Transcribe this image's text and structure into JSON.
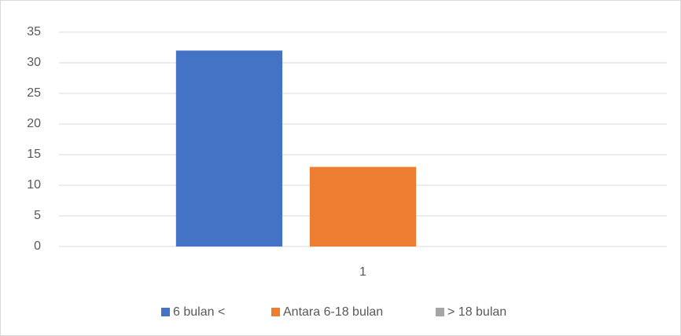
{
  "chart_data": {
    "type": "bar",
    "categories": [
      "1"
    ],
    "series": [
      {
        "name": "6 bulan <",
        "color": "#4472c4",
        "values": [
          32
        ]
      },
      {
        "name": "Antara 6-18 bulan",
        "color": "#ed7d31",
        "values": [
          13
        ]
      },
      {
        "name": "> 18 bulan",
        "color": "#a5a5a5",
        "values": [
          0
        ]
      }
    ],
    "ylim": [
      0,
      35
    ],
    "yticks": [
      0,
      5,
      10,
      15,
      20,
      25,
      30,
      35
    ],
    "grid": true,
    "legend": "bottom"
  }
}
